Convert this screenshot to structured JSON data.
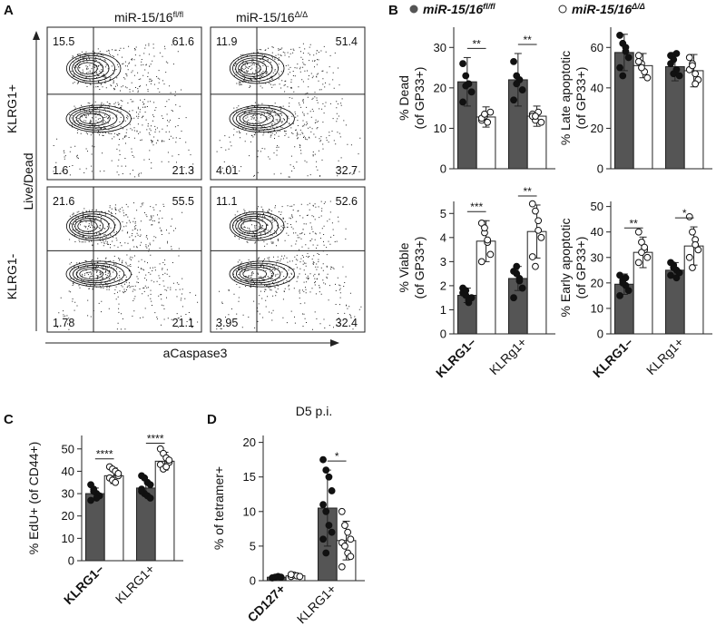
{
  "panel_labels": {
    "A": "A",
    "B": "B",
    "C": "C",
    "D": "D"
  },
  "flow": {
    "columns": [
      "miR-15/16^fl/fl",
      "miR-15/16^Δ/Δ"
    ],
    "col_main": "miR-15/16",
    "col_sups": [
      "fl/fl",
      "Δ/Δ"
    ],
    "rows": [
      "KLRG1+",
      "KLRG1-"
    ],
    "y_axis_label": "Live/Dead",
    "x_axis_label": "aCaspase3",
    "quadrants": [
      {
        "row": "KLRG1+",
        "col": "miR-15/16^fl/fl",
        "ul": "15.5",
        "ur": "61.6",
        "ll": "1.6",
        "lr": "21.3"
      },
      {
        "row": "KLRG1+",
        "col": "miR-15/16^Δ/Δ",
        "ul": "11.9",
        "ur": "51.4",
        "ll": "4.01",
        "lr": "32.7"
      },
      {
        "row": "KLRG1-",
        "col": "miR-15/16^fl/fl",
        "ul": "21.6",
        "ur": "55.5",
        "ll": "1.78",
        "lr": "21.1"
      },
      {
        "row": "KLRG1-",
        "col": "miR-15/16^Δ/Δ",
        "ul": "11.1",
        "ur": "52.6",
        "ll": "3.95",
        "lr": "32.4"
      }
    ]
  },
  "legend": {
    "entries": [
      {
        "main": "miR-15/16",
        "sup": "fl/fl",
        "color": "#555555"
      },
      {
        "main": "miR-15/16",
        "sup": "Δ/Δ",
        "color": "#ffffff"
      }
    ]
  },
  "chart_data": [
    {
      "id": "dead",
      "type": "bar",
      "categories": [
        "KLRG1–",
        "KLRg1+"
      ],
      "series": [
        {
          "name": "miR-15/16^fl/fl",
          "values": [
            21.5,
            22.0
          ]
        },
        {
          "name": "miR-15/16^Δ/Δ",
          "values": [
            12.8,
            13.0
          ]
        }
      ],
      "errors": [
        [
          6,
          6.5
        ],
        [
          2.5,
          2.5
        ]
      ],
      "points": [
        [
          [
            26,
            23,
            21,
            19,
            16.5,
            20.5
          ],
          [
            26.5,
            23,
            22,
            19.5,
            17,
            21
          ]
        ],
        [
          [
            12,
            13,
            11.5,
            14,
            12.5,
            13.5
          ],
          [
            13.5,
            12,
            14,
            11.5,
            13,
            13
          ]
        ]
      ],
      "ylabel": "% Dead (of GP33+)",
      "ylim": [
        0,
        35
      ],
      "yticks": [
        0,
        10,
        20,
        30
      ],
      "significance": [
        "**",
        "**"
      ],
      "title": "",
      "xlabel": ""
    },
    {
      "id": "late",
      "type": "bar",
      "categories": [
        "KLRG1–",
        "KLRg1+"
      ],
      "series": [
        {
          "name": "miR-15/16^fl/fl",
          "values": [
            57.5,
            50.5
          ]
        },
        {
          "name": "miR-15/16^Δ/Δ",
          "values": [
            51.0,
            48.5
          ]
        }
      ],
      "errors": [
        [
          9,
          7
        ],
        [
          6,
          8
        ]
      ],
      "points": [
        [
          [
            66,
            62,
            58,
            55,
            50,
            46,
            60
          ],
          [
            56,
            54,
            49,
            46,
            52,
            47,
            57
          ]
        ],
        [
          [
            56,
            52,
            48,
            45,
            53,
            50
          ],
          [
            55,
            52,
            47,
            44,
            49,
            51,
            42
          ]
        ]
      ],
      "ylabel": "% Late apoptotic (of GP33+)",
      "ylim": [
        0,
        70
      ],
      "yticks": [
        0,
        20,
        40,
        60
      ],
      "significance": [
        "",
        ""
      ],
      "title": "",
      "xlabel": ""
    },
    {
      "id": "viable",
      "type": "bar",
      "categories": [
        "KLRG1–",
        "KLRg1+"
      ],
      "series": [
        {
          "name": "miR-15/16^fl/fl",
          "values": [
            1.6,
            2.3
          ]
        },
        {
          "name": "miR-15/16^Δ/Δ",
          "values": [
            3.85,
            4.25
          ]
        }
      ],
      "errors": [
        [
          0.3,
          0.5
        ],
        [
          0.85,
          1.1
        ]
      ],
      "points": [
        [
          [
            1.9,
            1.6,
            1.3,
            1.5,
            1.7,
            1.8,
            1.4
          ],
          [
            2.6,
            2.8,
            2.3,
            1.9,
            1.5,
            2.5,
            2.2
          ]
        ],
        [
          [
            4.6,
            4.2,
            3.8,
            3.3,
            3.0,
            4.4,
            3.9
          ],
          [
            5.4,
            5.1,
            4.7,
            4.0,
            3.2,
            2.8,
            4.3
          ]
        ]
      ],
      "ylabel": "% Viable (of GP33+)",
      "ylim": [
        0,
        5.5
      ],
      "yticks": [
        0,
        1,
        2,
        3,
        4,
        5
      ],
      "significance": [
        "***",
        "**"
      ],
      "title": "",
      "xlabel": ""
    },
    {
      "id": "early",
      "type": "bar",
      "categories": [
        "KLRG1–",
        "KLRg1+"
      ],
      "series": [
        {
          "name": "miR-15/16^fl/fl",
          "values": [
            19.5,
            25.0
          ]
        },
        {
          "name": "miR-15/16^Δ/Δ",
          "values": [
            32.0,
            34.5
          ]
        }
      ],
      "errors": [
        [
          4,
          3
        ],
        [
          6,
          7.5
        ]
      ],
      "points": [
        [
          [
            23,
            21,
            19,
            17,
            15,
            20,
            22
          ],
          [
            28,
            27,
            25,
            24,
            23,
            26,
            22
          ]
        ],
        [
          [
            40,
            36,
            33,
            30,
            28,
            32,
            34
          ],
          [
            46,
            40,
            37,
            33,
            30,
            26,
            35
          ]
        ]
      ],
      "ylabel": "% Early apoptotic (of GP33+)",
      "ylim": [
        0,
        52
      ],
      "yticks": [
        0,
        10,
        20,
        30,
        40,
        50
      ],
      "significance": [
        "**",
        "*"
      ],
      "title": "",
      "xlabel": ""
    },
    {
      "id": "edu",
      "type": "bar",
      "categories": [
        "KLRG1–",
        "KLRG1+"
      ],
      "series": [
        {
          "name": "miR-15/16^fl/fl",
          "values": [
            30.0,
            32.5
          ]
        },
        {
          "name": "miR-15/16^Δ/Δ",
          "values": [
            38.0,
            44.5
          ]
        }
      ],
      "errors": [
        [
          2.5,
          3.5
        ],
        [
          3.5,
          4
        ]
      ],
      "points": [
        [
          [
            34,
            32,
            30,
            29,
            27,
            31,
            28
          ],
          [
            38,
            37,
            35,
            34,
            32,
            30,
            29,
            28,
            31
          ]
        ],
        [
          [
            42,
            41,
            40,
            38,
            37,
            36,
            35,
            39
          ],
          [
            50,
            48,
            46,
            44,
            43,
            41,
            42,
            45
          ]
        ]
      ],
      "ylabel": "% EdU+ (of CD44+)",
      "ylim": [
        0,
        56
      ],
      "yticks": [
        0,
        10,
        20,
        30,
        40,
        50
      ],
      "significance": [
        "****",
        "****"
      ],
      "title": "",
      "xlabel": ""
    },
    {
      "id": "tetramer",
      "type": "bar",
      "categories": [
        "CD127+",
        "KLRG1+"
      ],
      "series": [
        {
          "name": "miR-15/16^fl/fl",
          "values": [
            0.5,
            10.5
          ]
        },
        {
          "name": "miR-15/16^Δ/Δ",
          "values": [
            0.7,
            5.8
          ]
        }
      ],
      "errors": [
        [
          0.15,
          5.5
        ],
        [
          0.2,
          2.8
        ]
      ],
      "points": [
        [
          [
            0.4,
            0.5,
            0.6,
            0.5
          ],
          [
            17.5,
            16,
            15,
            13,
            11,
            10,
            8,
            7,
            6,
            4
          ]
        ],
        [
          [
            0.6,
            0.8,
            0.7,
            0.6,
            0.9
          ],
          [
            10,
            8,
            7,
            6,
            5.5,
            5,
            4,
            3.5,
            2
          ]
        ]
      ],
      "ylabel": "% of tetramer+",
      "ylim": [
        0,
        21
      ],
      "yticks": [
        0,
        5,
        10,
        15,
        20
      ],
      "significance": [
        "",
        "*"
      ],
      "title": "D5 p.i.",
      "xlabel": ""
    }
  ]
}
